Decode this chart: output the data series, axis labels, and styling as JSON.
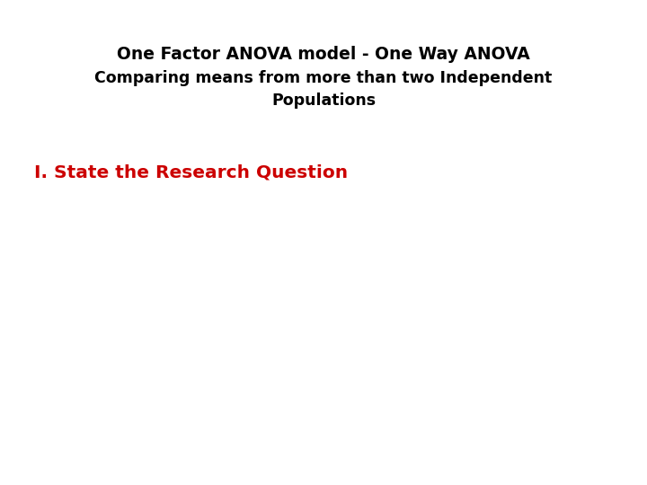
{
  "title_line1": "One Factor ANOVA model - One Way ANOVA",
  "title_line2": "Comparing means from more than two Independent",
  "title_line3": "Populations",
  "title_color": "#000000",
  "title_fontsize": 13.5,
  "subtitle_fontsize": 12.5,
  "section_text": "I. State the Research Question",
  "section_color": "#cc0000",
  "section_fontsize": 14.5,
  "background_color": "#ffffff"
}
